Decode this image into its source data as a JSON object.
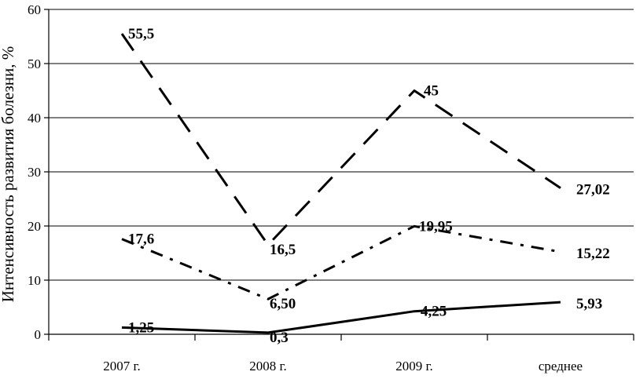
{
  "chart_data": {
    "type": "line",
    "categories": [
      "2007 г.",
      "2008 г.",
      "2009 г.",
      "среднее"
    ],
    "ylabel": "Интенсивность развития болезни, %",
    "ylim": [
      0,
      60
    ],
    "yticks": [
      "0",
      "10",
      "20",
      "30",
      "40",
      "50",
      "60"
    ],
    "grid": true,
    "series": [
      {
        "style": "long-dash",
        "values": [
          55.5,
          16.5,
          45,
          27.02
        ],
        "labels": [
          "55,5",
          "16,5",
          "45",
          "27,02"
        ]
      },
      {
        "style": "dash-dot",
        "values": [
          17.6,
          6.5,
          19.95,
          15.22
        ],
        "labels": [
          "17,6",
          "6,50",
          "19,95",
          "15,22"
        ]
      },
      {
        "style": "solid",
        "values": [
          1.25,
          0.3,
          4.25,
          5.93
        ],
        "labels": [
          "1,25",
          "0,3",
          "4,25",
          "5,93"
        ]
      }
    ]
  }
}
